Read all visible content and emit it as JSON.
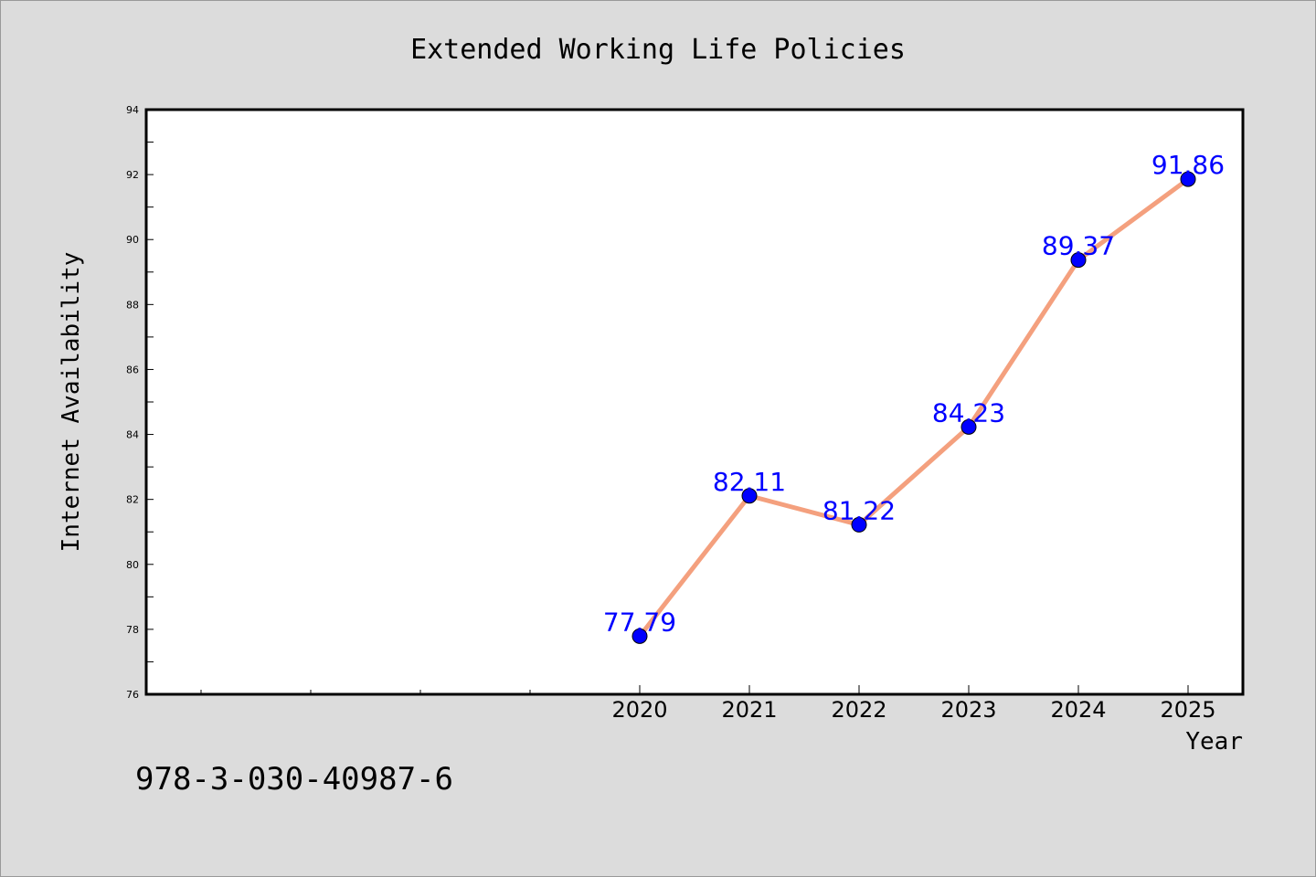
{
  "chart_data": {
    "type": "line",
    "title": "Extended Working Life Policies",
    "xlabel": "Year",
    "ylabel": "Internet Availability",
    "x": [
      "2020",
      "2021",
      "2022",
      "2023",
      "2024",
      "2025"
    ],
    "series": [
      {
        "values": [
          77.79,
          82.11,
          81.22,
          84.23,
          89.37,
          91.86
        ],
        "labels": [
          "77.79",
          "82.11",
          "81.22",
          "84.23",
          "89.37",
          "91.86"
        ]
      }
    ],
    "ylim": [
      76,
      94
    ],
    "yticks": [
      76,
      78,
      80,
      82,
      84,
      86,
      88,
      90,
      92,
      94
    ],
    "grid": false,
    "colors": {
      "line": "#f4a07e",
      "marker": "#0000ff",
      "data_label": "#0000ff",
      "plot_background": "#ffffff",
      "figure_background": "#dcdcdc"
    }
  },
  "footnote": "978-3-030-40987-6"
}
